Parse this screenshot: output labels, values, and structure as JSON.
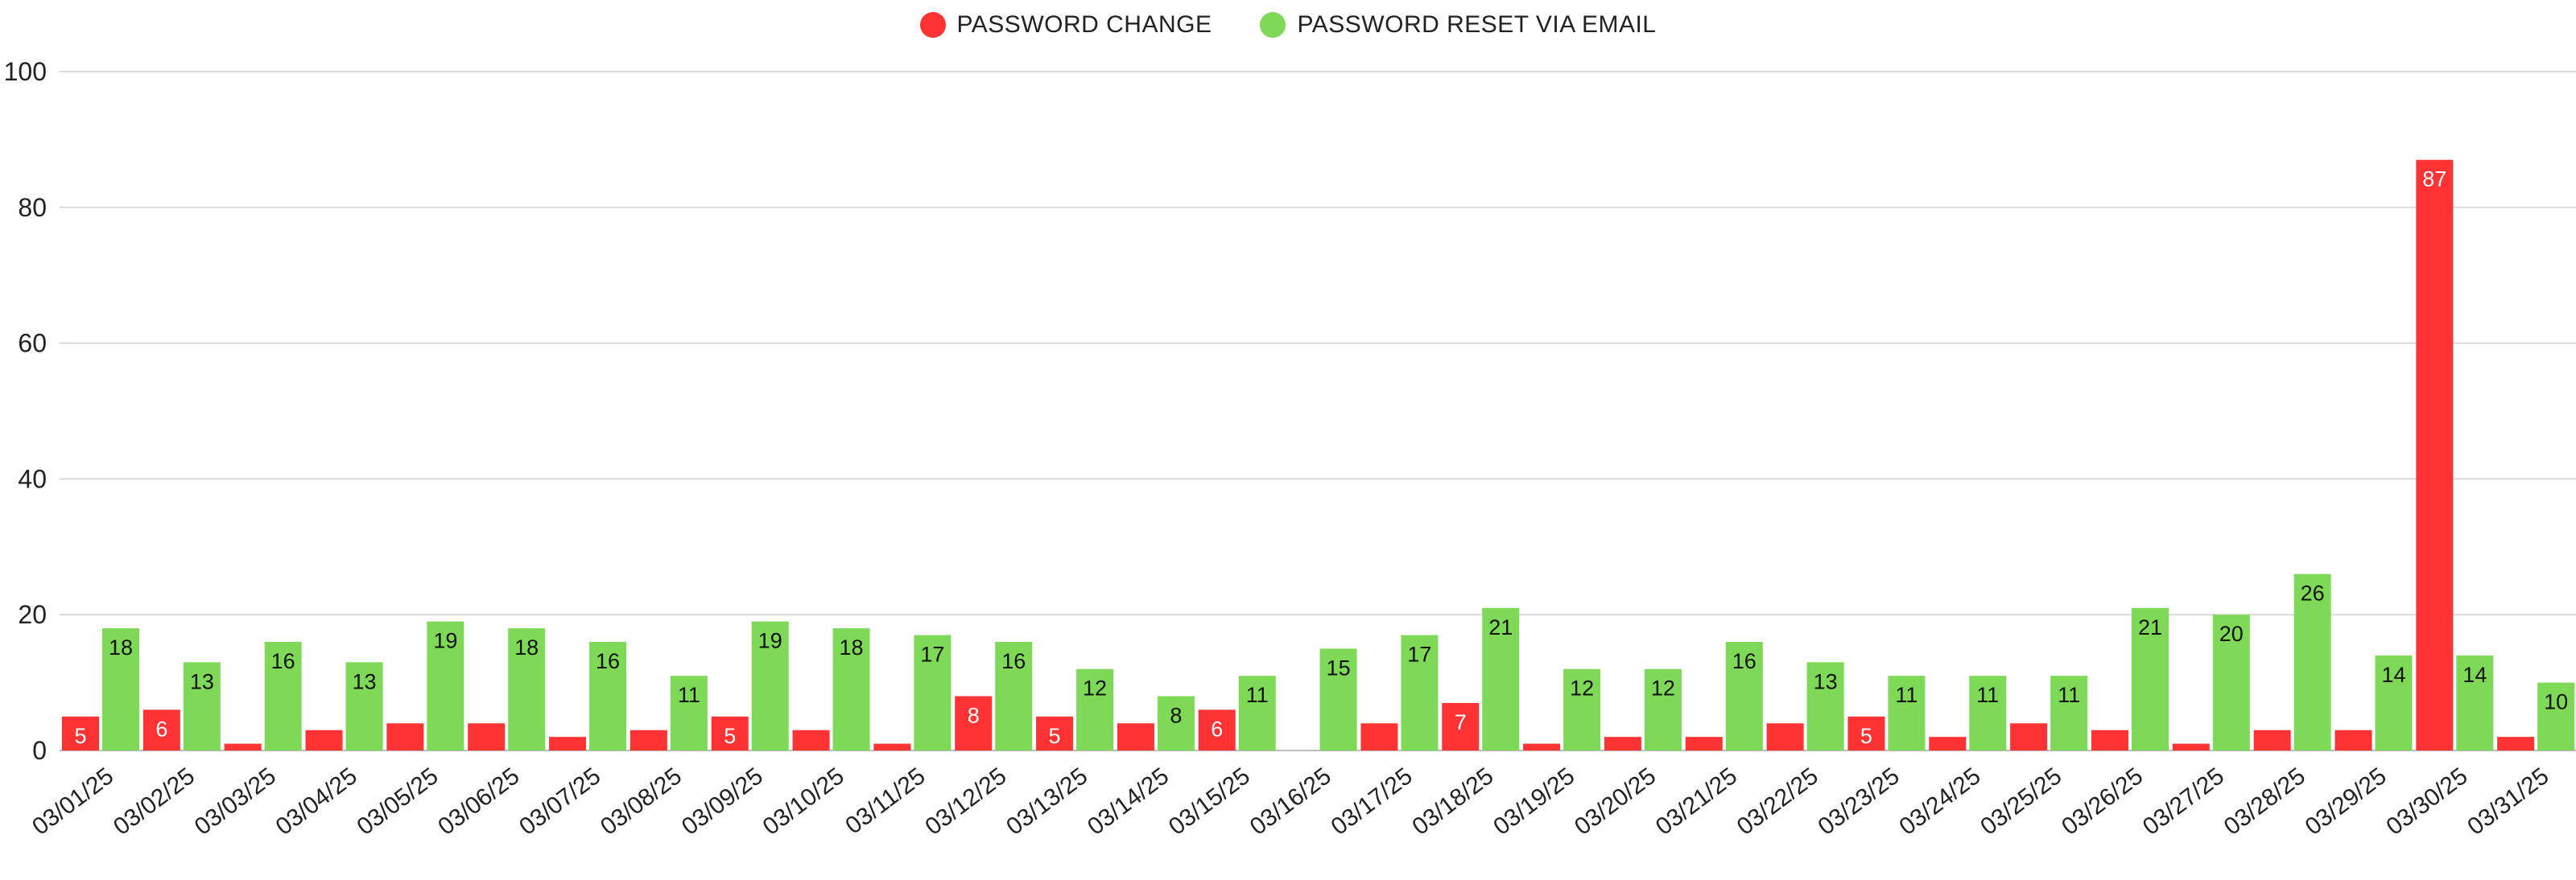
{
  "legend": [
    {
      "name": "PASSWORD CHANGE",
      "color": "#FF3333"
    },
    {
      "name": "PASSWORD RESET VIA EMAIL",
      "color": "#7ED957"
    }
  ],
  "chart_data": {
    "type": "bar",
    "categories": [
      "03/01/25",
      "03/02/25",
      "03/03/25",
      "03/04/25",
      "03/05/25",
      "03/06/25",
      "03/07/25",
      "03/08/25",
      "03/09/25",
      "03/10/25",
      "03/11/25",
      "03/12/25",
      "03/13/25",
      "03/14/25",
      "03/15/25",
      "03/16/25",
      "03/17/25",
      "03/18/25",
      "03/19/25",
      "03/20/25",
      "03/21/25",
      "03/22/25",
      "03/23/25",
      "03/24/25",
      "03/25/25",
      "03/26/25",
      "03/27/25",
      "03/28/25",
      "03/29/25",
      "03/30/25",
      "03/31/25"
    ],
    "series": [
      {
        "name": "PASSWORD CHANGE",
        "color": "#FF3333",
        "values": [
          5,
          6,
          1,
          3,
          4,
          4,
          2,
          3,
          5,
          3,
          1,
          8,
          5,
          4,
          6,
          0,
          4,
          7,
          1,
          2,
          2,
          4,
          5,
          2,
          4,
          3,
          1,
          3,
          3,
          87,
          2
        ]
      },
      {
        "name": "PASSWORD RESET VIA EMAIL",
        "color": "#7ED957",
        "values": [
          18,
          13,
          16,
          13,
          19,
          18,
          16,
          11,
          19,
          18,
          17,
          16,
          12,
          8,
          11,
          15,
          17,
          21,
          12,
          12,
          16,
          13,
          11,
          11,
          11,
          21,
          20,
          26,
          14,
          14,
          10
        ]
      }
    ],
    "data_labels": {
      "PASSWORD CHANGE": [
        5,
        6,
        null,
        null,
        null,
        null,
        null,
        null,
        5,
        null,
        null,
        8,
        5,
        null,
        6,
        null,
        null,
        7,
        null,
        null,
        null,
        null,
        5,
        null,
        null,
        null,
        null,
        null,
        null,
        87,
        null
      ],
      "PASSWORD RESET VIA EMAIL": [
        18,
        13,
        16,
        13,
        19,
        18,
        16,
        11,
        19,
        18,
        17,
        16,
        12,
        8,
        11,
        15,
        17,
        21,
        12,
        12,
        16,
        13,
        11,
        11,
        11,
        21,
        20,
        26,
        14,
        14,
        10
      ]
    },
    "yticks": [
      0,
      20,
      40,
      60,
      80,
      100
    ],
    "ylim": [
      0,
      100
    ],
    "grid": true,
    "legend_position": "top-center"
  }
}
